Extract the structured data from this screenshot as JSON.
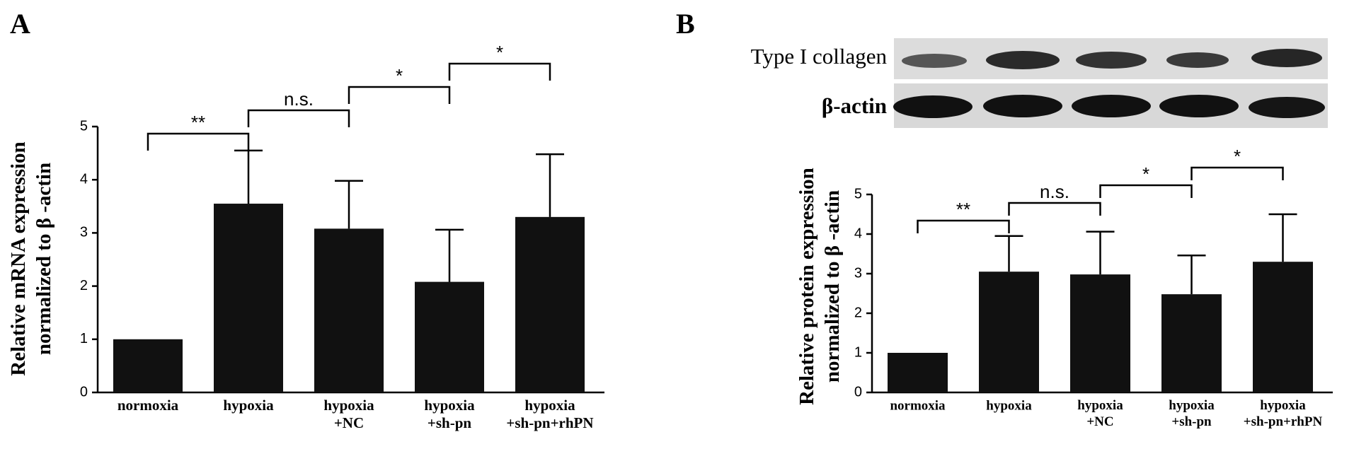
{
  "panel_labels": [
    "A",
    "B"
  ],
  "blot": {
    "rows": [
      "Type I collagen",
      "β-actin"
    ]
  },
  "chart_data": [
    {
      "type": "bar",
      "categories": [
        "normoxia",
        "hypoxia",
        "hypoxia\n+NC",
        "hypoxia\n+sh-pn",
        "hypoxia\n+sh-pn+rhPN"
      ],
      "values": [
        1.0,
        3.55,
        3.08,
        2.08,
        3.3
      ],
      "errors": [
        null,
        1.0,
        0.9,
        0.98,
        1.18
      ],
      "color": "#111111",
      "y_label": "Relative mRNA expression\nnormalized to β -actin",
      "ylim": [
        0,
        5
      ],
      "yticks": [
        0,
        1,
        2,
        3,
        4,
        5
      ],
      "annotations": [
        {
          "label": "**",
          "between": [
            0,
            1
          ]
        },
        {
          "label": "n.s.",
          "between": [
            1,
            2
          ]
        },
        {
          "label": "*",
          "between": [
            2,
            3
          ]
        },
        {
          "label": "*",
          "between": [
            3,
            4
          ]
        }
      ]
    },
    {
      "type": "bar",
      "categories": [
        "normoxia",
        "hypoxia",
        "hypoxia\n+NC",
        "hypoxia\n+sh-pn",
        "hypoxia\n+sh-pn+rhPN"
      ],
      "values": [
        1.0,
        3.05,
        2.98,
        2.48,
        3.3
      ],
      "errors": [
        null,
        0.9,
        1.08,
        0.98,
        1.2
      ],
      "color": "#111111",
      "y_label": "Relative protein expression\nnormalized to β -actin",
      "ylim": [
        0,
        5
      ],
      "yticks": [
        0,
        1,
        2,
        3,
        4,
        5
      ],
      "annotations": [
        {
          "label": "**",
          "between": [
            0,
            1
          ]
        },
        {
          "label": "n.s.",
          "between": [
            1,
            2
          ]
        },
        {
          "label": "*",
          "between": [
            2,
            3
          ]
        },
        {
          "label": "*",
          "between": [
            3,
            4
          ]
        }
      ]
    }
  ]
}
